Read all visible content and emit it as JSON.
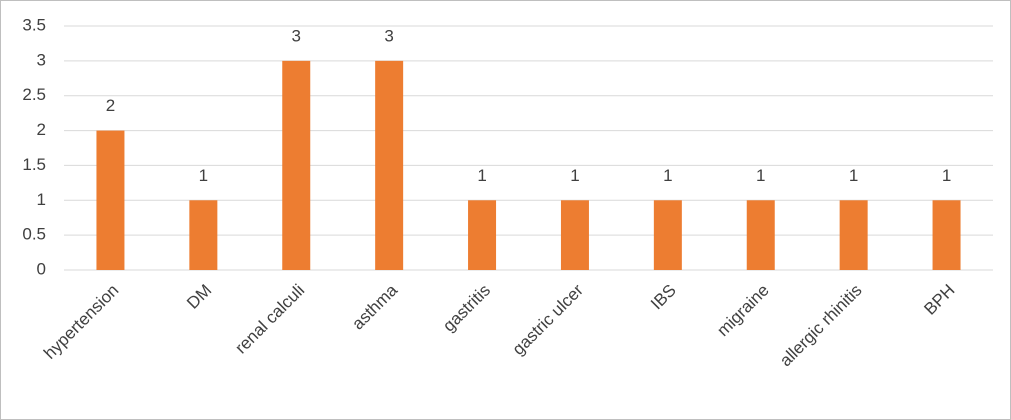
{
  "chart_data": {
    "type": "bar",
    "categories": [
      "hypertension",
      "DM",
      "renal calculi",
      "asthma",
      "gastritis",
      "gastric ulcer",
      "IBS",
      "migraine",
      "allergic rhinitis",
      "BPH"
    ],
    "values": [
      2,
      1,
      3,
      3,
      1,
      1,
      1,
      1,
      1,
      1
    ],
    "color": "#ed7d31",
    "ylim": [
      0,
      3.5
    ],
    "yticks": [
      0,
      0.5,
      1,
      1.5,
      2,
      2.5,
      3,
      3.5
    ],
    "grid": true
  }
}
